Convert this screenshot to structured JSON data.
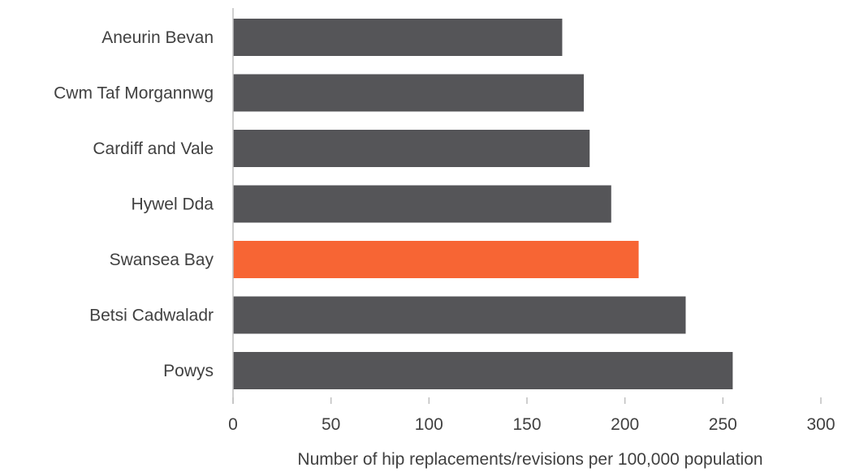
{
  "chart_data": {
    "type": "bar",
    "orientation": "horizontal",
    "categories": [
      "Aneurin Bevan",
      "Cwm Taf Morgannwg",
      "Cardiff and Vale",
      "Hywel Dda",
      "Swansea Bay",
      "Betsi Cadwaladr",
      "Powys"
    ],
    "values": [
      168,
      179,
      182,
      193,
      207,
      231,
      255
    ],
    "highlight": "Swansea Bay",
    "colors": {
      "default": "#555558",
      "highlight": "#f76534",
      "axis": "#bfbfbf",
      "text": "#404040"
    },
    "xlabel": "Number of hip replacements/revisions per 100,000 population",
    "ylabel": "",
    "title": "",
    "xlim": [
      0,
      300
    ],
    "xticks": [
      0,
      50,
      100,
      150,
      200,
      250,
      300
    ],
    "xtick_labels": [
      "0",
      "50",
      "100",
      "150",
      "200",
      "250",
      "300"
    ],
    "grid": false,
    "legend": "none"
  }
}
